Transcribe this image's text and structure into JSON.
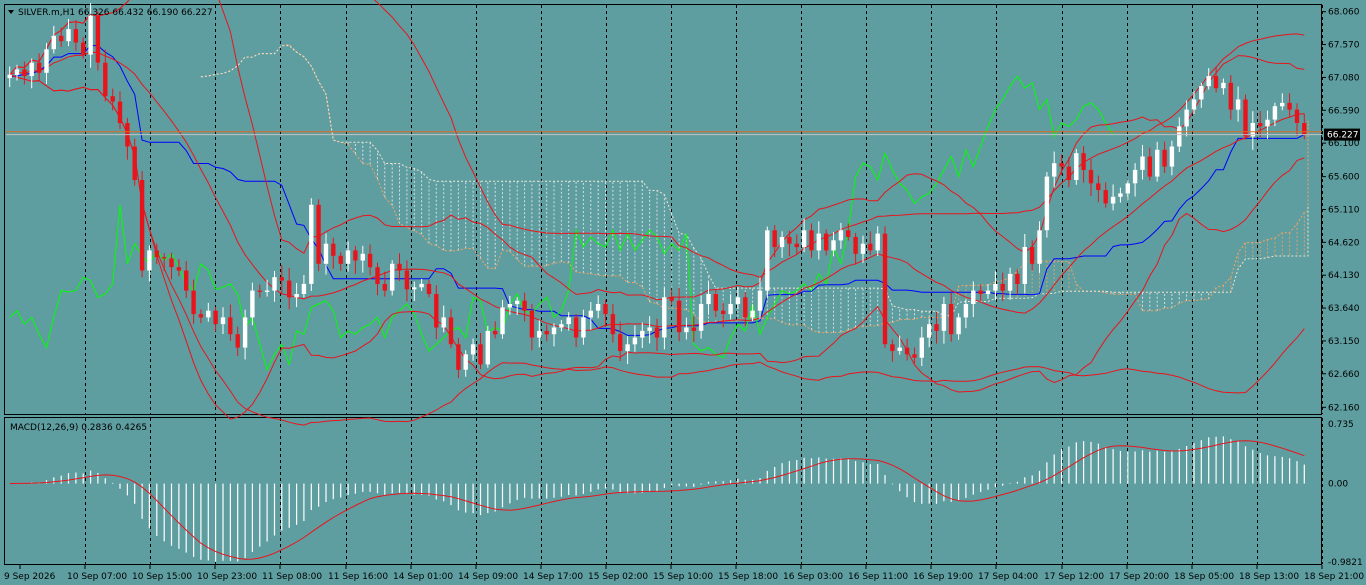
{
  "chart_data": {
    "type": "candlestick",
    "main_legend": "SILVER.m,H1  66.326 66.432 66.190 66.227",
    "macd_legend": "MACD(12,26,9) 0.2836 0.4265",
    "current_price_label": "66.227",
    "price_ticks": [
      "68.060",
      "67.570",
      "67.080",
      "66.590",
      "66.100",
      "65.600",
      "65.110",
      "64.620",
      "64.130",
      "63.640",
      "63.150",
      "62.660",
      "62.160"
    ],
    "macd_ticks": [
      "0.735",
      "0.00",
      "-0.9821"
    ],
    "time_ticks": [
      "9 Sep 2026",
      "10 Sep 07:00",
      "10 Sep 15:00",
      "10 Sep 23:00",
      "11 Sep 08:00",
      "11 Sep 16:00",
      "14 Sep 01:00",
      "14 Sep 09:00",
      "14 Sep 17:00",
      "15 Sep 02:00",
      "15 Sep 10:00",
      "15 Sep 18:00",
      "16 Sep 03:00",
      "16 Sep 11:00",
      "16 Sep 19:00",
      "17 Sep 04:00",
      "17 Sep 12:00",
      "17 Sep 20:00",
      "18 Sep 05:00",
      "18 Sep 13:00",
      "18 Sep 21:00"
    ],
    "ylim": [
      62.06,
      68.16
    ],
    "macd_ylim": [
      -0.98,
      0.8
    ],
    "horizontal_line_price": 66.27,
    "current_price": 66.227,
    "closes": [
      67.12,
      67.2,
      67.1,
      67.3,
      67.15,
      67.5,
      67.7,
      67.62,
      67.8,
      67.6,
      67.42,
      68.0,
      67.3,
      66.8,
      66.72,
      66.4,
      66.05,
      65.55,
      64.2,
      64.5,
      64.4,
      64.38,
      64.25,
      64.2,
      63.9,
      63.55,
      63.5,
      63.6,
      63.4,
      63.5,
      63.25,
      63.05,
      63.5,
      63.9,
      63.88,
      63.9,
      64.1,
      64.05,
      63.8,
      63.85,
      64.0,
      65.18,
      64.3,
      64.6,
      64.42,
      64.3,
      64.5,
      64.35,
      64.45,
      64.25,
      64.0,
      63.9,
      64.3,
      64.2,
      63.92,
      63.95,
      64.0,
      63.85,
      63.35,
      63.5,
      63.1,
      62.72,
      62.95,
      63.1,
      62.8,
      63.3,
      63.25,
      63.65,
      63.7,
      63.75,
      63.6,
      63.2,
      63.3,
      63.25,
      63.35,
      63.4,
      63.5,
      63.2,
      63.5,
      63.6,
      63.7,
      63.55,
      63.25,
      63.0,
      63.1,
      63.2,
      63.3,
      63.35,
      63.2,
      63.8,
      63.75,
      63.28,
      63.35,
      63.3,
      63.7,
      63.85,
      63.6,
      63.55,
      63.7,
      63.8,
      63.5,
      63.6,
      63.9,
      64.8,
      64.55,
      64.7,
      64.6,
      64.55,
      64.8,
      64.5,
      64.75,
      64.5,
      64.65,
      64.8,
      64.7,
      64.45,
      64.6,
      64.5,
      64.75,
      63.1,
      63.0,
      63.05,
      62.95,
      62.9,
      63.2,
      63.4,
      63.3,
      63.7,
      63.25,
      63.5,
      63.7,
      63.9,
      63.85,
      63.9,
      64.0,
      63.9,
      64.15,
      64.0,
      64.55,
      64.3,
      64.8,
      65.6,
      65.8,
      65.75,
      65.55,
      65.95,
      65.7,
      65.5,
      65.4,
      65.2,
      65.3,
      65.35,
      65.5,
      65.7,
      65.9,
      65.6,
      66.0,
      65.75,
      66.05,
      66.35,
      66.6,
      66.75,
      66.95,
      67.1,
      66.92,
      67.0,
      66.6,
      66.75,
      66.2,
      66.4,
      66.35,
      66.45,
      66.65,
      66.7,
      66.6,
      66.4,
      66.227
    ],
    "macd_hist_start": 0.32,
    "macd_hist_min": -0.95,
    "macd_hist_max": 0.73,
    "macd_signal_end": 0.4265,
    "macd_hist_end": 0.2836
  }
}
